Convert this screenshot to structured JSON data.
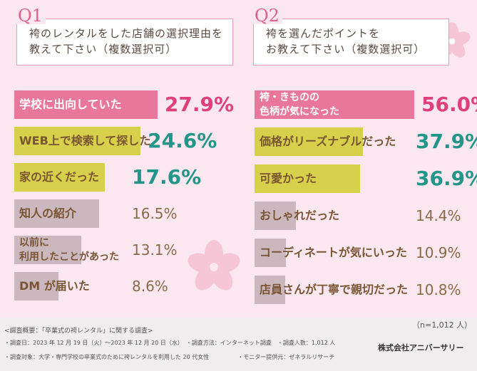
{
  "chart_data": [
    {
      "type": "bar",
      "orientation": "horizontal",
      "label": "Q1",
      "title": "袴のレンタルをした店舗の選択理由を\n教えて下さい（複数選択可）",
      "categories": [
        "学校に出向していた",
        "WEB上で検索して探した",
        "家の近くだった",
        "知人の紹介",
        "以前に\n利用したことがあった",
        "DM が届いた"
      ],
      "values": [
        27.9,
        24.6,
        17.6,
        16.5,
        13.1,
        8.6
      ],
      "value_labels": [
        "27.9%",
        "24.6%",
        "17.6%",
        "16.5%",
        "13.1%",
        "8.6%"
      ],
      "colors": [
        "#e8779b",
        "#d6d04a",
        "#d6d04a",
        "#cbb8be",
        "#cbb8be",
        "#cbb8be"
      ],
      "category_text_colors": [
        "#ffffff",
        "#7a5533",
        "#7a5533",
        "#7a5533",
        "#7a5533",
        "#7a5533"
      ],
      "label_colors": [
        "#e0407a",
        "#23968a",
        "#23968a",
        "#8b6a4a",
        "#8b6a4a",
        "#8b6a4a"
      ]
    },
    {
      "type": "bar",
      "orientation": "horizontal",
      "label": "Q2",
      "title": "袴を選んだポイントを\nお教えて下さい（複数選択可）",
      "categories": [
        "袴・きものの\n色柄が気になった",
        "価格がリーズナブルだった",
        "可愛かった",
        "おしゃれだった",
        "コーディネートが気にいった",
        "店員さんが丁寧で親切だった"
      ],
      "values": [
        56.0,
        37.9,
        36.9,
        14.4,
        10.9,
        10.8
      ],
      "value_labels": [
        "56.0%",
        "37.9%",
        "36.9%",
        "14.4%",
        "10.9%",
        "10.8%"
      ],
      "colors": [
        "#e8779b",
        "#d6d04a",
        "#d6d04a",
        "#cbb8be",
        "#cbb8be",
        "#cbb8be"
      ],
      "category_text_colors": [
        "#ffffff",
        "#7a5533",
        "#7a5533",
        "#7a5533",
        "#7a5533",
        "#7a5533"
      ],
      "label_colors": [
        "#e0407a",
        "#23968a",
        "#23968a",
        "#8b6a4a",
        "#8b6a4a",
        "#8b6a4a"
      ]
    }
  ],
  "sample_size": "（n=1,012 人）",
  "footer": {
    "heading": "<調査概要：「卒業式の袴レンタル」に関する調査>",
    "lines": [
      "・調査日：2023 年 12 月 19 日（火）〜2023 年 12 月 20 日（水）　・調査方法：インターネット調査　・調査人数：1,012 人",
      "・調査対象：大学・専門学校の卒業式のために袴レンタルを利用した 20 代女性　　　　　・モニター提供元：ゼネラルリサーチ"
    ],
    "company": "株式会社アニバーサリー"
  }
}
